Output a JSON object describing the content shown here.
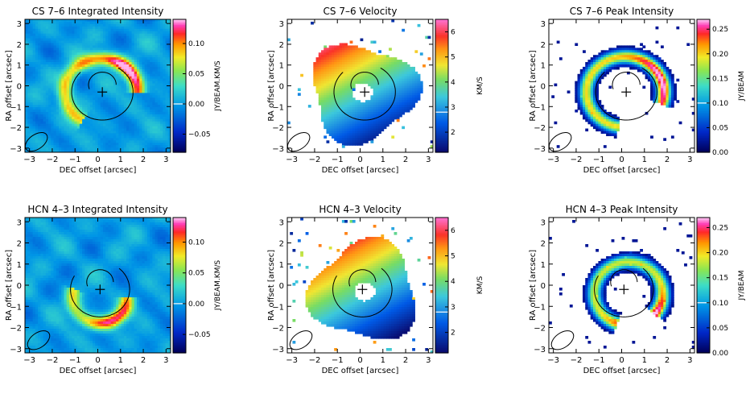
{
  "chart_data": [
    {
      "type": "heatmap",
      "title": "CS 7–6 Integrated Intensity",
      "xlabel": "DEC offset [arcsec]",
      "ylabel": "RA offset [arcsec]",
      "xlim": [
        -3.2,
        3.2
      ],
      "ylim": [
        -3.2,
        3.2
      ],
      "x_ticks": [
        -3,
        -2,
        -1,
        0,
        1,
        2,
        3
      ],
      "y_ticks": [
        -3,
        -2,
        -1,
        0,
        1,
        2,
        3
      ],
      "colorbar": {
        "label": "JY/BEAM.KM/S",
        "scale": "rainbow_intensity",
        "range": [
          -0.08,
          0.14
        ],
        "ticks": [
          -0.05,
          0.0,
          0.05,
          0.1
        ],
        "tick_labels": [
          "−0.05",
          "0.00",
          "0.05",
          "0.10"
        ],
        "marker": 0.0
      },
      "map": {
        "kind": "intensity",
        "background": "noise",
        "arc_start_deg": 0,
        "arc_end_deg": 240,
        "ring_radius": 1.6,
        "ring_center": [
          0.15,
          -0.3
        ],
        "ring_peak": 0.12,
        "peak_angle": 40,
        "peak_gain": 0.7
      },
      "overlay": {
        "center": [
          0.2,
          -0.3
        ],
        "arc_radius": 1.35,
        "arc_from_deg": 135,
        "arc_to_deg": 420
      },
      "beam": {
        "center": [
          -2.7,
          -2.7
        ],
        "major": 0.55,
        "minor": 0.35,
        "angle": -35
      }
    },
    {
      "type": "heatmap",
      "title": "CS 7–6 Velocity",
      "xlabel": "DEC offset [arcsec]",
      "ylabel": "RA offset [arcsec]",
      "xlim": [
        -3.2,
        3.2
      ],
      "ylim": [
        -3.2,
        3.2
      ],
      "x_ticks": [
        -3,
        -2,
        -1,
        0,
        1,
        2,
        3
      ],
      "y_ticks": [
        -3,
        -2,
        -1,
        0,
        1,
        2,
        3
      ],
      "colorbar": {
        "label": "KM/S",
        "scale": "rainbow_velocity",
        "range": [
          1.2,
          6.5
        ],
        "ticks": [
          2,
          3,
          4,
          5,
          6
        ],
        "tick_labels": [
          "2",
          "3",
          "4",
          "5",
          "6"
        ],
        "marker": 2.8
      },
      "map": {
        "kind": "velocity",
        "background": "blank",
        "disk_radius": 2.3,
        "disk_center": [
          0.1,
          -0.3
        ],
        "v_min": 1.5,
        "v_max": 5.8,
        "v_axis_deg": 120
      },
      "overlay": {
        "center": [
          0.2,
          -0.3
        ],
        "arc_radius": 1.35,
        "arc_from_deg": 135,
        "arc_to_deg": 420
      },
      "beam": {
        "center": [
          -2.7,
          -2.7
        ],
        "major": 0.55,
        "minor": 0.35,
        "angle": -35
      }
    },
    {
      "type": "heatmap",
      "title": "CS 7–6 Peak Intensity",
      "xlabel": "DEC offset [arcsec]",
      "ylabel": "RA offset [arcsec]",
      "xlim": [
        -3.2,
        3.2
      ],
      "ylim": [
        -3.2,
        3.2
      ],
      "x_ticks": [
        -3,
        -2,
        -1,
        0,
        1,
        2,
        3
      ],
      "y_ticks": [
        -3,
        -2,
        -1,
        0,
        1,
        2,
        3
      ],
      "colorbar": {
        "label": "JY/BEAM",
        "scale": "rainbow_intensity",
        "range": [
          0.0,
          0.27
        ],
        "ticks": [
          0.0,
          0.05,
          0.1,
          0.15,
          0.2,
          0.25
        ],
        "tick_labels": [
          "0.00",
          "0.05",
          "0.10",
          "0.15",
          "0.20",
          "0.25"
        ],
        "marker": 0.1
      },
      "map": {
        "kind": "peak",
        "background": "blank",
        "arc_start_deg": -20,
        "arc_end_deg": 260,
        "ring_radius": 1.7,
        "ring_center": [
          0.15,
          -0.3
        ],
        "ring_peak": 0.24,
        "peak_angle": 20,
        "peak_gain": 0.4
      },
      "overlay": {
        "center": [
          0.2,
          -0.3
        ],
        "arc_radius": 1.35,
        "arc_from_deg": 135,
        "arc_to_deg": 420
      },
      "beam": {
        "center": [
          -2.7,
          -2.7
        ],
        "major": 0.55,
        "minor": 0.35,
        "angle": -35
      }
    },
    {
      "type": "heatmap",
      "title": "HCN 4–3 Integrated Intensity",
      "xlabel": "DEC offset [arcsec]",
      "ylabel": "RA offset [arcsec]",
      "xlim": [
        -3.2,
        3.2
      ],
      "ylim": [
        -3.2,
        3.2
      ],
      "x_ticks": [
        -3,
        -2,
        -1,
        0,
        1,
        2,
        3
      ],
      "y_ticks": [
        -3,
        -2,
        -1,
        0,
        1,
        2,
        3
      ],
      "colorbar": {
        "label": "JY/BEAM.KM/S",
        "scale": "rainbow_intensity",
        "range": [
          -0.08,
          0.14
        ],
        "ticks": [
          -0.05,
          0.0,
          0.05,
          0.1
        ],
        "tick_labels": [
          "−0.05",
          "0.00",
          "0.05",
          "0.10"
        ],
        "marker": 0.0
      },
      "map": {
        "kind": "intensity",
        "background": "noise",
        "arc_start_deg": 160,
        "arc_end_deg": 360,
        "ring_radius": 1.2,
        "ring_center": [
          0.1,
          -0.6
        ],
        "ring_peak": 0.1,
        "peak_angle": 300,
        "peak_gain": 0.8
      },
      "overlay": {
        "center": [
          0.1,
          -0.2
        ],
        "arc_radius": 1.3,
        "arc_from_deg": 150,
        "arc_to_deg": 410
      },
      "beam": {
        "center": [
          -2.6,
          -2.6
        ],
        "major": 0.55,
        "minor": 0.35,
        "angle": -35
      }
    },
    {
      "type": "heatmap",
      "title": "HCN 4–3 Velocity",
      "xlabel": "DEC offset [arcsec]",
      "ylabel": "RA offset [arcsec]",
      "xlim": [
        -3.2,
        3.2
      ],
      "ylim": [
        -3.2,
        3.2
      ],
      "x_ticks": [
        -3,
        -2,
        -1,
        0,
        1,
        2,
        3
      ],
      "y_ticks": [
        -3,
        -2,
        -1,
        0,
        1,
        2,
        3
      ],
      "colorbar": {
        "label": "KM/S",
        "scale": "rainbow_velocity",
        "range": [
          1.2,
          6.5
        ],
        "ticks": [
          2,
          3,
          4,
          5,
          6
        ],
        "tick_labels": [
          "2",
          "3",
          "4",
          "5",
          "6"
        ],
        "marker": 2.8
      },
      "map": {
        "kind": "velocity",
        "background": "blank",
        "disk_radius": 2.3,
        "disk_center": [
          0.2,
          -0.3
        ],
        "v_min": 1.5,
        "v_max": 5.8,
        "v_axis_deg": 120
      },
      "overlay": {
        "center": [
          0.1,
          -0.2
        ],
        "arc_radius": 1.3,
        "arc_from_deg": 150,
        "arc_to_deg": 410
      },
      "beam": {
        "center": [
          -2.6,
          -2.6
        ],
        "major": 0.55,
        "minor": 0.35,
        "angle": -35
      }
    },
    {
      "type": "heatmap",
      "title": "HCN 4–3 Peak Intensity",
      "xlabel": "DEC offset [arcsec]",
      "ylabel": "RA offset [arcsec]",
      "xlim": [
        -3.2,
        3.2
      ],
      "ylim": [
        -3.2,
        3.2
      ],
      "x_ticks": [
        -3,
        -2,
        -1,
        0,
        1,
        2,
        3
      ],
      "y_ticks": [
        -3,
        -2,
        -1,
        0,
        1,
        2,
        3
      ],
      "colorbar": {
        "label": "JY/BEAM",
        "scale": "rainbow_intensity",
        "range": [
          0.0,
          0.27
        ],
        "ticks": [
          0.0,
          0.05,
          0.1,
          0.15,
          0.2,
          0.25
        ],
        "tick_labels": [
          "0.00",
          "0.05",
          "0.10",
          "0.15",
          "0.20",
          "0.25"
        ],
        "marker": 0.1
      },
      "map": {
        "kind": "peak",
        "background": "blank",
        "arc_start_deg": -40,
        "arc_end_deg": 250,
        "ring_radius": 1.5,
        "ring_center": [
          0.3,
          -0.4
        ],
        "ring_peak": 0.24,
        "peak_angle": 300,
        "peak_gain": 0.6
      },
      "overlay": {
        "center": [
          0.1,
          -0.2
        ],
        "arc_radius": 1.3,
        "arc_from_deg": 150,
        "arc_to_deg": 410
      },
      "beam": {
        "center": [
          -2.6,
          -2.6
        ],
        "major": 0.55,
        "minor": 0.35,
        "angle": -35
      }
    }
  ]
}
